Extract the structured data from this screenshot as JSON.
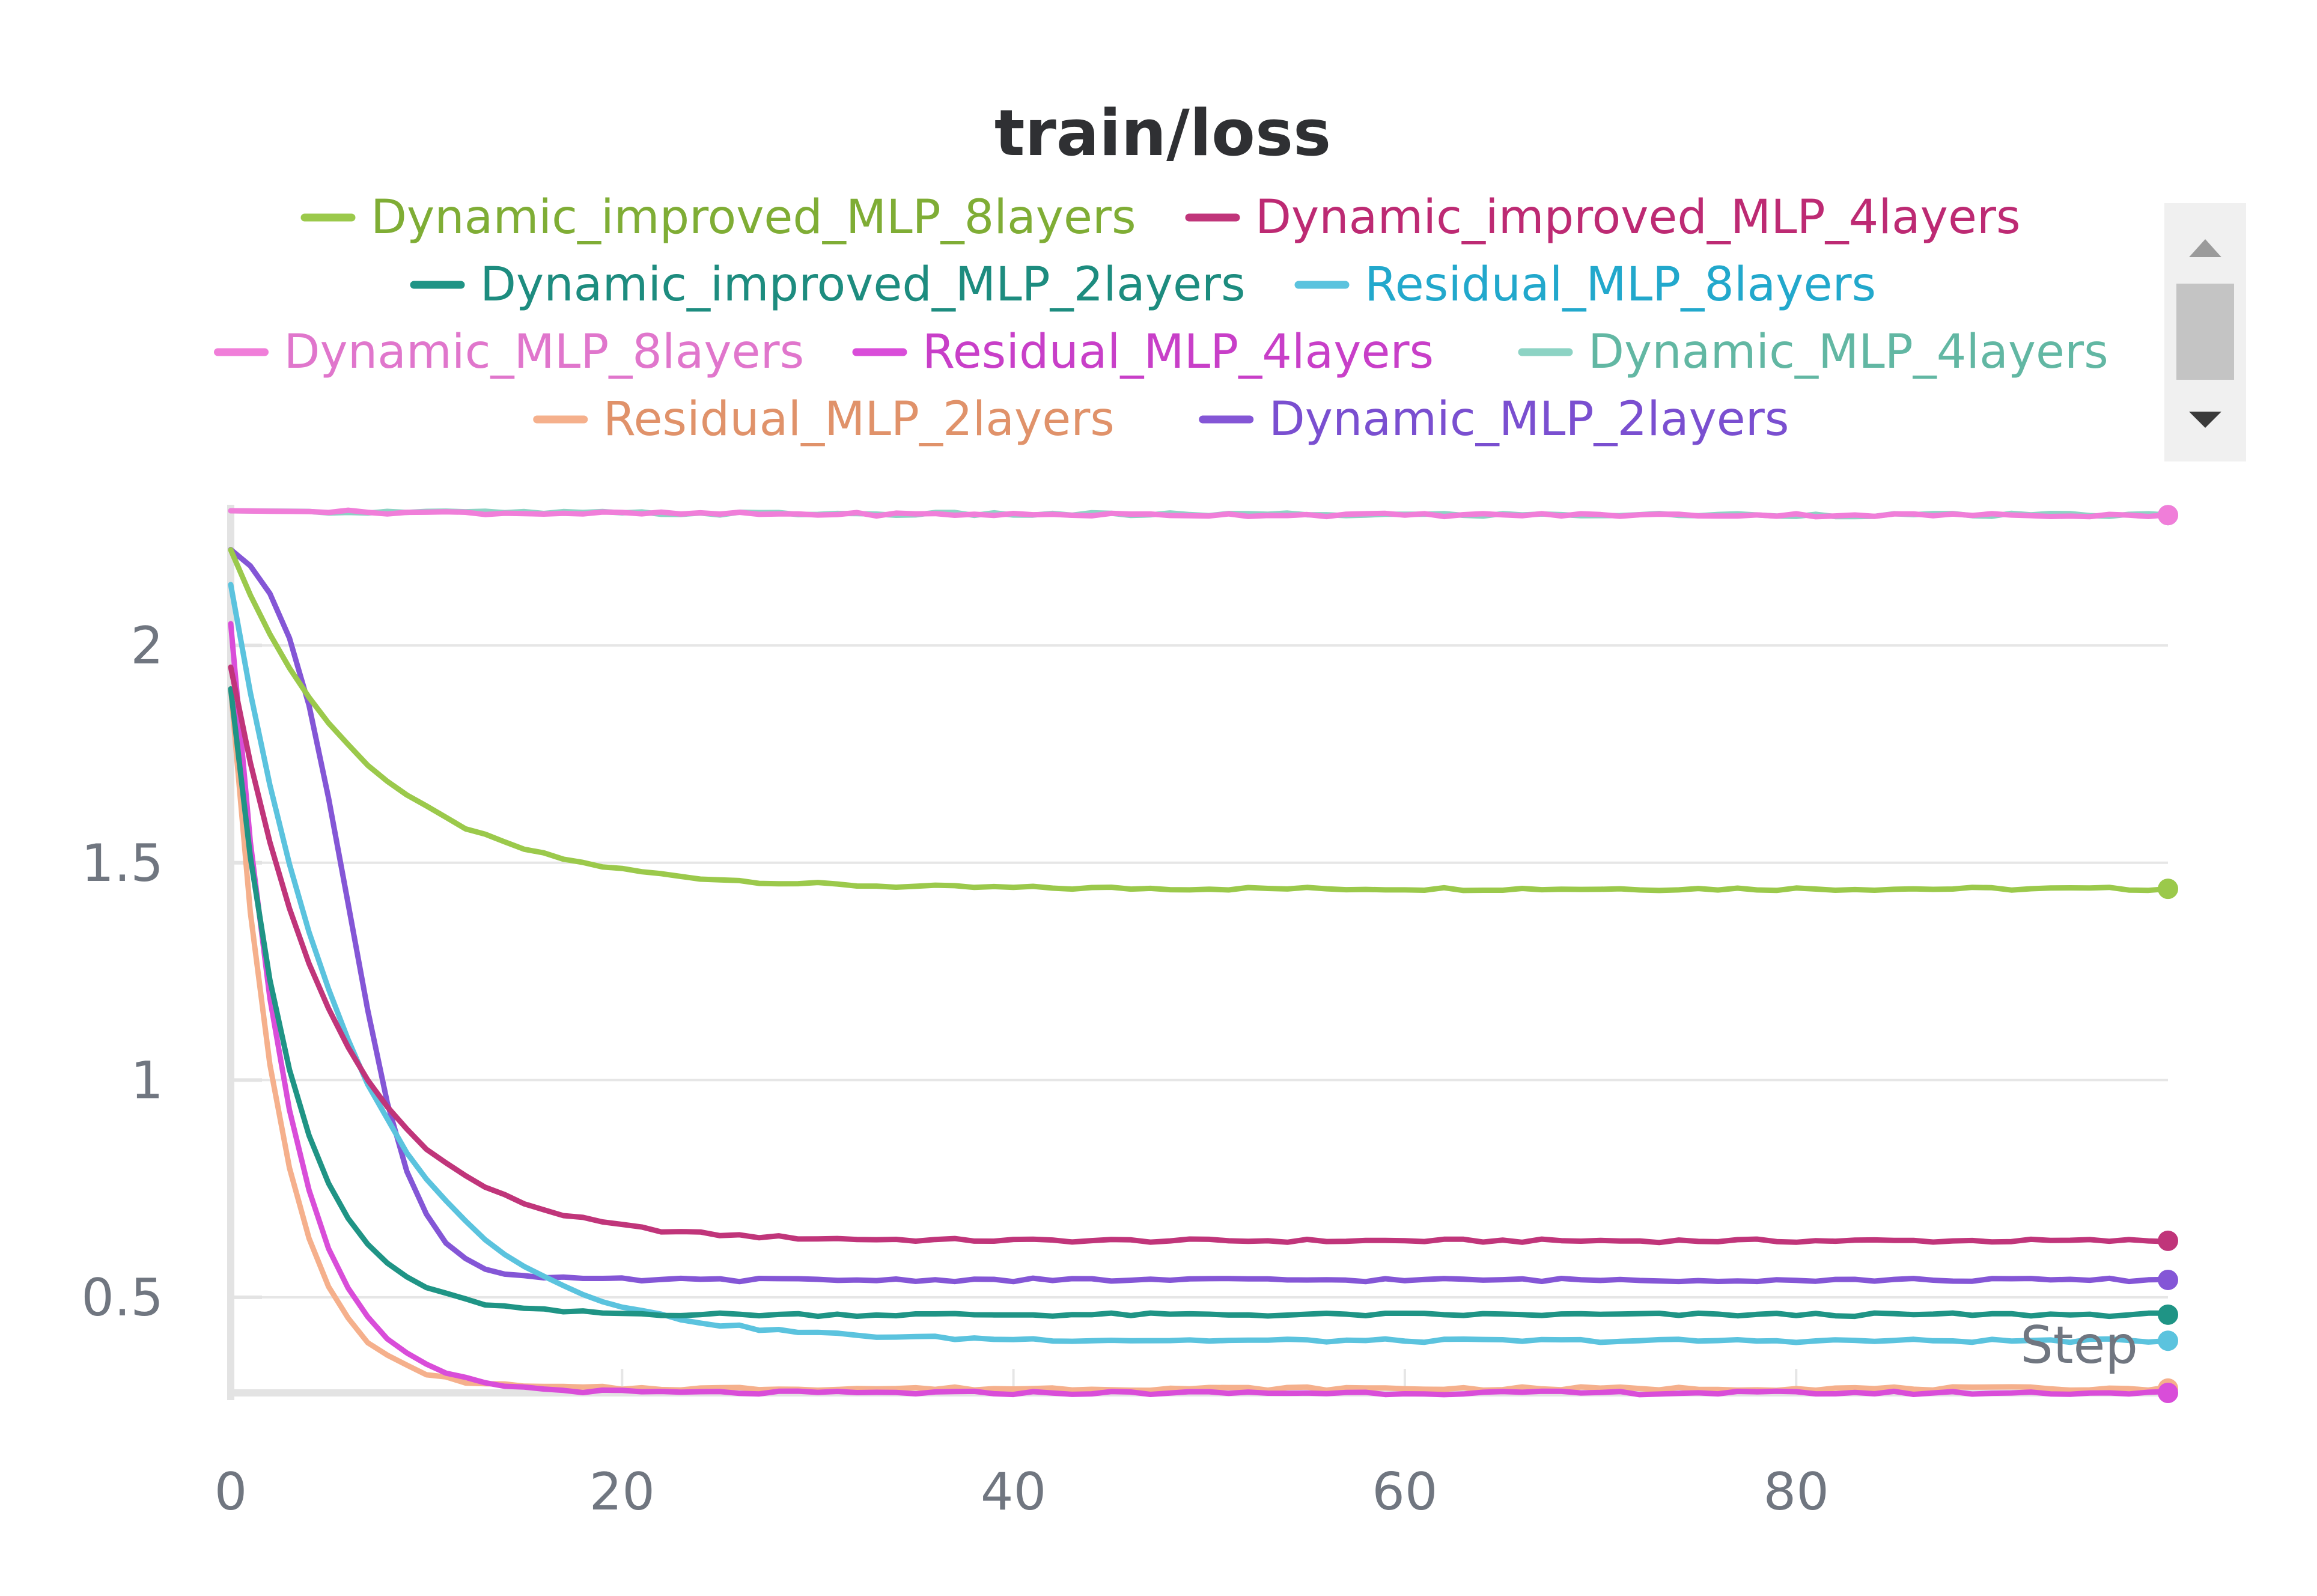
{
  "chart_data": {
    "type": "line",
    "title": "train/loss",
    "xlabel": "Step",
    "ylabel": "",
    "xlim": [
      0,
      99
    ],
    "ylim": [
      0.28,
      2.31
    ],
    "x_ticks": [
      "0",
      "20",
      "40",
      "60",
      "80"
    ],
    "y_ticks": [
      "0.5",
      "1",
      "1.5",
      "2"
    ],
    "x_tick_values": [
      0,
      20,
      40,
      60,
      80
    ],
    "y_tick_values": [
      0.5,
      1,
      1.5,
      2
    ],
    "grid": true,
    "legend_position": "top",
    "legend_scroll_controls": true,
    "series": [
      {
        "name": "Dynamic_improved_MLP_8layers",
        "color": "#9bc94b",
        "text_color": "#7fad35",
        "start": 2.22,
        "end": 1.44,
        "tau": 7.0
      },
      {
        "name": "Dynamic_improved_MLP_4layers",
        "color": "#c0357a",
        "text_color": "#bd2a73",
        "start": 1.95,
        "end": 0.63,
        "tau": 5.5
      },
      {
        "name": "Dynamic_improved_MLP_2layers",
        "color": "#1f9485",
        "text_color": "#1d8c7f",
        "start": 1.9,
        "end": 0.46,
        "tau": 3.2
      },
      {
        "name": "Residual_MLP_8layers",
        "color": "#5bc3de",
        "text_color": "#22a8cc",
        "start": 2.14,
        "end": 0.4,
        "tau": 6.5
      },
      {
        "name": "Dynamic_MLP_8layers",
        "color": "#f07ed9",
        "text_color": "#e076cc",
        "start": 2.31,
        "end": 2.3,
        "tau": 20.0
      },
      {
        "name": "Residual_MLP_4layers",
        "color": "#d94dd9",
        "text_color": "#c83fc8",
        "start": 2.05,
        "end": 0.28,
        "tau": 3.0
      },
      {
        "name": "Dynamic_MLP_4layers",
        "color": "#8dd3c4",
        "text_color": "#62b7a3",
        "start": 2.31,
        "end": 2.3,
        "tau": 25.0
      },
      {
        "name": "Residual_MLP_2layers",
        "color": "#f5b08c",
        "text_color": "#e0926a",
        "start": 1.9,
        "end": 0.29,
        "tau": 2.6
      },
      {
        "name": "Dynamic_MLP_2layers",
        "color": "#8456d6",
        "text_color": "#7a4fd0",
        "start": 2.27,
        "end": 0.54,
        "sigmoid_mid": 6.0,
        "sigmoid_w": 1.7
      }
    ]
  }
}
